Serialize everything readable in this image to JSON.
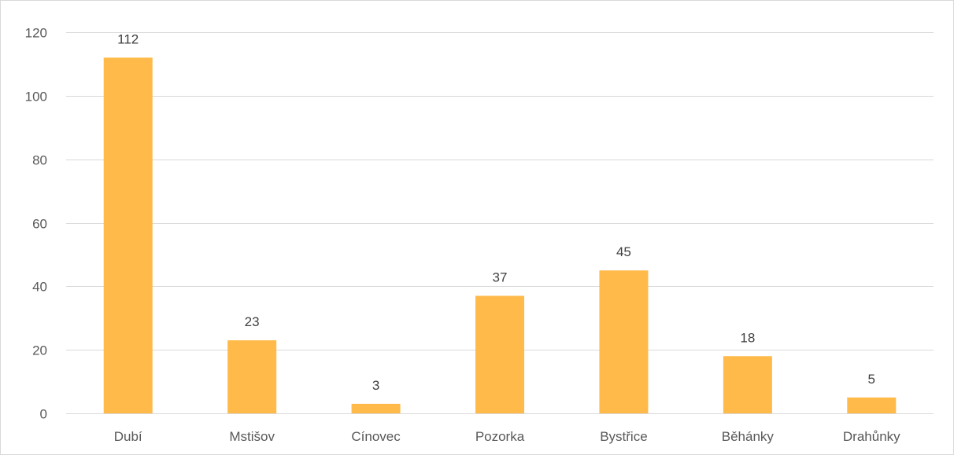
{
  "chart_data": {
    "type": "bar",
    "categories": [
      "Dubí",
      "Mstišov",
      "Cínovec",
      "Pozorka",
      "Bystřice",
      "Běhánky",
      "Drahůnky"
    ],
    "values": [
      112,
      23,
      3,
      37,
      45,
      18,
      5
    ],
    "ylim": [
      0,
      120
    ],
    "yticks": [
      0,
      20,
      40,
      60,
      80,
      100,
      120
    ],
    "grid": true,
    "legend": "none",
    "colors": {
      "bar": "#FFBA49",
      "grid": "#d9d9d9",
      "axis_text": "#595959",
      "label_text": "#404040"
    }
  }
}
